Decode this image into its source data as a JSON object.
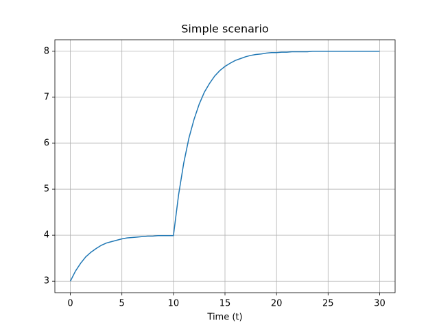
{
  "chart_data": {
    "type": "line",
    "title": "Simple scenario",
    "x_label": "Time (t)",
    "x": [
      0,
      0.5,
      1,
      1.5,
      2,
      2.5,
      3,
      3.5,
      4,
      4.5,
      5,
      5.5,
      6,
      6.5,
      7,
      7.5,
      8,
      8.5,
      9,
      9.5,
      10,
      10.5,
      11,
      11.5,
      12,
      12.5,
      13,
      13.5,
      14,
      14.5,
      15,
      15.5,
      16,
      16.5,
      17,
      17.5,
      18,
      18.5,
      19,
      19.5,
      20,
      20.5,
      21,
      21.5,
      22,
      22.5,
      23,
      23.5,
      24,
      24.5,
      25,
      25.5,
      26,
      26.5,
      27,
      27.5,
      28,
      28.5,
      29,
      29.5,
      30
    ],
    "series": [
      {
        "color": "#1f77b4",
        "values": [
          3.0,
          3.22,
          3.39,
          3.53,
          3.63,
          3.71,
          3.78,
          3.83,
          3.86,
          3.89,
          3.92,
          3.94,
          3.95,
          3.96,
          3.97,
          3.98,
          3.98,
          3.99,
          3.99,
          3.99,
          3.99,
          4.88,
          5.57,
          6.11,
          6.52,
          6.85,
          7.11,
          7.3,
          7.46,
          7.58,
          7.67,
          7.74,
          7.8,
          7.84,
          7.88,
          7.91,
          7.93,
          7.94,
          7.96,
          7.97,
          7.97,
          7.98,
          7.98,
          7.99,
          7.99,
          7.99,
          7.99,
          8.0,
          8.0,
          8.0,
          8.0,
          8.0,
          8.0,
          8.0,
          8.0,
          8.0,
          8.0,
          8.0,
          8.0,
          8.0,
          8.0
        ]
      }
    ],
    "xlim": [
      -1.5,
      31.5
    ],
    "ylim": [
      2.75,
      8.25
    ],
    "xticks": [
      0,
      5,
      10,
      15,
      20,
      25,
      30
    ],
    "yticks": [
      3,
      4,
      5,
      6,
      7,
      8
    ],
    "grid": true
  }
}
